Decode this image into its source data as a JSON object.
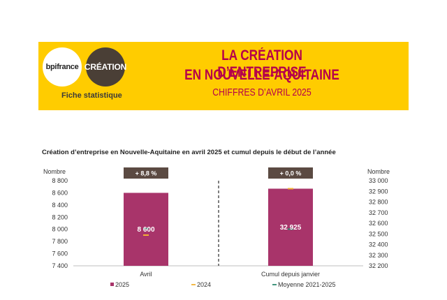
{
  "header": {
    "logo_left": "bpifrance",
    "logo_right": "CRÉATION",
    "fiche": "Fiche statistique",
    "title_line1": "LA CRÉATION D’ENTREPRISE",
    "title_line2": "EN NOUVELLE-AQUITAINE",
    "title_line3": "CHIFFRES D’AVRIL 2025"
  },
  "colors": {
    "banner": "#FFCC00",
    "title": "#B5004B",
    "bar": "#A8346A",
    "s2024": "#F2B134",
    "avg": "#2E8B6F",
    "badge": "#5B4A42"
  },
  "chart_data": {
    "type": "bar",
    "title": "Création d’entreprise en Nouvelle-Aquitaine en avril 2025 et cumul depuis le début de l’année",
    "left_axis": {
      "label": "Nombre",
      "ylim": [
        7400,
        8800
      ],
      "ticks": [
        "8 800",
        "8 600",
        "8 400",
        "8 200",
        "8 000",
        "7 800",
        "7 600",
        "7 400"
      ],
      "tick_values": [
        8800,
        8600,
        8400,
        8200,
        8000,
        7800,
        7600,
        7400
      ]
    },
    "right_axis": {
      "label": "Nombre",
      "ylim": [
        32200,
        33000
      ],
      "ticks": [
        "33 000",
        "32 900",
        "32 800",
        "32 700",
        "32 600",
        "32 500",
        "32 400",
        "32 300",
        "32 200"
      ],
      "tick_values": [
        33000,
        32900,
        32800,
        32700,
        32600,
        32500,
        32400,
        32300,
        32200
      ]
    },
    "categories": [
      "Avril",
      "Cumul depuis janvier"
    ],
    "series": [
      {
        "name": "2025",
        "values": [
          8600,
          32925
        ],
        "data_labels": [
          "8 600",
          "32 925"
        ]
      },
      {
        "name": "2024",
        "values": [
          7905,
          32925
        ]
      },
      {
        "name": "Moyenne 2021-2025",
        "values": [
          8010,
          32545
        ]
      }
    ],
    "changes": [
      "+ 8,8 %",
      "+ 0,0 %"
    ]
  }
}
